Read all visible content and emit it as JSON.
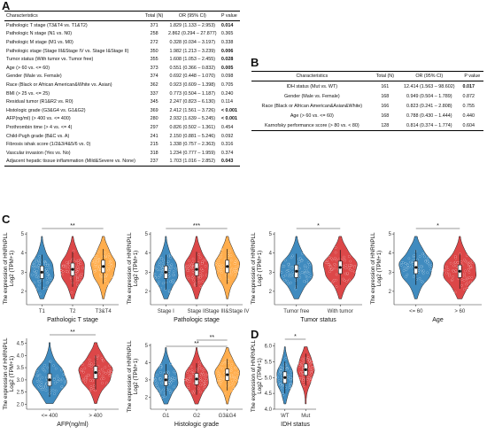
{
  "panel_a": {
    "letter": "A",
    "headers": [
      "Characteristics",
      "Total (N)",
      "OR (95% CI)",
      "P value"
    ],
    "rows": [
      {
        "char": "Pathologic T stage (T3&T4 vs. T1&T2)",
        "n": "371",
        "or": "1.829 (1.133 – 2.953)",
        "p": "0.014",
        "bold": true
      },
      {
        "char": "Pathologic N stage (N1 vs. N0)",
        "n": "258",
        "or": "2.862 (0.294 – 27.877)",
        "p": "0.365",
        "bold": false
      },
      {
        "char": "Pathologic M stage (M1 vs. M0)",
        "n": "272",
        "or": "0.328 (0.034 – 3.197)",
        "p": "0.338",
        "bold": false
      },
      {
        "char": "Pathologic stage (Stage III&Stage IV vs. Stage I&Stage II)",
        "n": "350",
        "or": "1.982 (1.213 – 3.239)",
        "p": "0.006",
        "bold": true
      },
      {
        "char": "Tumor status (With tumor vs. Tumor free)",
        "n": "355",
        "or": "1.608 (1.053 – 2.455)",
        "p": "0.028",
        "bold": true
      },
      {
        "char": "Age (> 60 vs. <= 60)",
        "n": "373",
        "or": "0.551 (0.366 – 0.832)",
        "p": "0.005",
        "bold": true
      },
      {
        "char": "Gender (Male vs. Female)",
        "n": "374",
        "or": "0.692 (0.448 – 1.070)",
        "p": "0.098",
        "bold": false
      },
      {
        "char": "Race (Black or African American&White vs. Asian)",
        "n": "362",
        "or": "0.923 (0.609 – 1.398)",
        "p": "0.705",
        "bold": false
      },
      {
        "char": "BMI (> 25 vs. <= 25)",
        "n": "337",
        "or": "0.773 (0.504 – 1.187)",
        "p": "0.240",
        "bold": false
      },
      {
        "char": "Residual tumor (R1&R2 vs. R0)",
        "n": "345",
        "or": "2.247 (0.823 – 6.130)",
        "p": "0.114",
        "bold": false
      },
      {
        "char": "Histologic grade (G3&G4 vs. G1&G2)",
        "n": "369",
        "or": "2.412 (1.561 – 3.726)",
        "p": "< 0.001",
        "bold": true
      },
      {
        "char": "AFP(ng/ml) (> 400 vs. <= 400)",
        "n": "280",
        "or": "2.932 (1.639 – 5.245)",
        "p": "< 0.001",
        "bold": true
      },
      {
        "char": "Prothrombin time (> 4 vs. <= 4)",
        "n": "297",
        "or": "0.826 (0.502 – 1.361)",
        "p": "0.454",
        "bold": false
      },
      {
        "char": "Child-Pugh grade (B&C vs. A)",
        "n": "241",
        "or": "2.150 (0.881 – 5.246)",
        "p": "0.092",
        "bold": false
      },
      {
        "char": "Fibrosis ishak score (1/2&3/4&5/6 vs. 0)",
        "n": "215",
        "or": "1.338 (0.757 – 2.363)",
        "p": "0.316",
        "bold": false
      },
      {
        "char": "Vascular invasion (Yes vs. No)",
        "n": "318",
        "or": "1.234 (0.777 – 1.959)",
        "p": "0.374",
        "bold": false
      },
      {
        "char": "Adjacent hepatic tissue inflammation (Mild&Severe vs. None)",
        "n": "237",
        "or": "1.703 (1.016 – 2.852)",
        "p": "0.043",
        "bold": true
      }
    ]
  },
  "panel_b": {
    "letter": "B",
    "headers": [
      "Characteristics",
      "Total (N)",
      "OR (95% CI)",
      "P value"
    ],
    "rows": [
      {
        "char": "IDH status (Mut vs. WT)",
        "n": "161",
        "or": "12.414 (1.563 – 98.602)",
        "p": "0.017",
        "bold": true
      },
      {
        "char": "Gender (Male vs. Female)",
        "n": "168",
        "or": "0.949 (0.504 – 1.789)",
        "p": "0.872",
        "bold": false
      },
      {
        "char": "Race (Black or African American&Asian&White)",
        "n": "166",
        "or": "0.823 (0.241 – 2.808)",
        "p": "0.755",
        "bold": false
      },
      {
        "char": "Age (> 60 vs. <= 60)",
        "n": "168",
        "or": "0.788 (0.430 – 1.444)",
        "p": "0.440",
        "bold": false
      },
      {
        "char": "Karnofsky performance score (> 80 vs. < 80)",
        "n": "128",
        "or": "0.814 (0.374 – 1.774)",
        "p": "0.604",
        "bold": false
      }
    ]
  },
  "panel_c_letter": "C",
  "panel_d_letter": "D",
  "colors": {
    "blue": "#1f77b4",
    "red": "#d62728",
    "orange": "#ff9f2e",
    "violin_stroke": "#222222"
  },
  "chart_data": [
    {
      "type": "violin",
      "id": "c1",
      "ylabel": "The expression of HNRNPLL",
      "ylabel2": "Log2 (TPM+1)",
      "xlabel": "Pathologic T stage",
      "categories": [
        "T1",
        "T2",
        "T3&T4"
      ],
      "medians": [
        3.0,
        3.15,
        3.3
      ],
      "ylim": [
        1.3,
        5.1
      ],
      "yticks": [
        2,
        3,
        4,
        5
      ],
      "significance": [
        {
          "from": 0,
          "to": 2,
          "label": "**"
        }
      ]
    },
    {
      "type": "violin",
      "id": "c2",
      "ylabel": "The expression of HNRNPLL",
      "ylabel2": "Log2 (TPM+1)",
      "xlabel": "Pathologic stage",
      "categories": [
        "Stage I",
        "Stage II",
        "Stage III&Stage IV"
      ],
      "medians": [
        3.0,
        3.15,
        3.3
      ],
      "ylim": [
        1.3,
        5.1
      ],
      "yticks": [
        2,
        3,
        4,
        5
      ],
      "significance": [
        {
          "from": 0,
          "to": 2,
          "label": "***"
        }
      ]
    },
    {
      "type": "violin",
      "id": "c3",
      "ylabel": "The expression of HNRNPLL",
      "ylabel2": "Log2 (TPM+1)",
      "xlabel": "Tumor status",
      "categories": [
        "Tumor free",
        "With tumor"
      ],
      "medians": [
        3.05,
        3.25
      ],
      "ylim": [
        1.3,
        5.1
      ],
      "yticks": [
        2,
        3,
        4,
        5
      ],
      "significance": [
        {
          "from": 0,
          "to": 1,
          "label": "*"
        }
      ]
    },
    {
      "type": "violin",
      "id": "c4",
      "ylabel": "The expression of HNRNPLL",
      "ylabel2": "Log2 (TPM+1)",
      "xlabel": "Age",
      "categories": [
        "<= 60",
        "> 60"
      ],
      "medians": [
        3.25,
        3.05
      ],
      "ylim": [
        1.3,
        5.1
      ],
      "yticks": [
        2,
        3,
        4,
        5
      ],
      "significance": [
        {
          "from": 0,
          "to": 1,
          "label": "*"
        }
      ]
    },
    {
      "type": "violin",
      "id": "c5",
      "ylabel": "The expression of HNRNPLL",
      "ylabel2": "Log2 (TPM+1)",
      "xlabel": "AFP(ng/ml)",
      "categories": [
        "<= 400",
        "> 400"
      ],
      "medians": [
        3.0,
        3.3
      ],
      "ylim": [
        1.8,
        4.7
      ],
      "yticks": [
        2.0,
        2.5,
        3.0,
        3.5,
        4.0,
        4.5
      ],
      "significance": [
        {
          "from": 0,
          "to": 1,
          "label": "**"
        }
      ]
    },
    {
      "type": "violin",
      "id": "c6",
      "ylabel": "The expression of HNRNPLL",
      "ylabel2": "Log2 (TPM+1)",
      "xlabel": "Histologic grade",
      "categories": [
        "G1",
        "G2",
        "G3&G4"
      ],
      "medians": [
        3.0,
        3.05,
        3.3
      ],
      "ylim": [
        1.3,
        5.1
      ],
      "yticks": [
        2,
        3,
        4,
        5
      ],
      "significance": [
        {
          "from": 1,
          "to": 2,
          "label": "**"
        },
        {
          "from": 0,
          "to": 2,
          "label": "**"
        }
      ]
    },
    {
      "type": "violin",
      "id": "d1",
      "ylabel": "The expression of HNRNPLL",
      "ylabel2": "Log2 (TPM+1)",
      "xlabel": "IDH status",
      "categories": [
        "WT",
        "Mut"
      ],
      "medians": [
        5.0,
        5.25
      ],
      "ylim": [
        4.0,
        6.1
      ],
      "yticks": [
        4.0,
        4.5,
        5.0,
        5.5,
        6.0
      ],
      "significance": [
        {
          "from": 0,
          "to": 1,
          "label": "*"
        }
      ]
    }
  ]
}
